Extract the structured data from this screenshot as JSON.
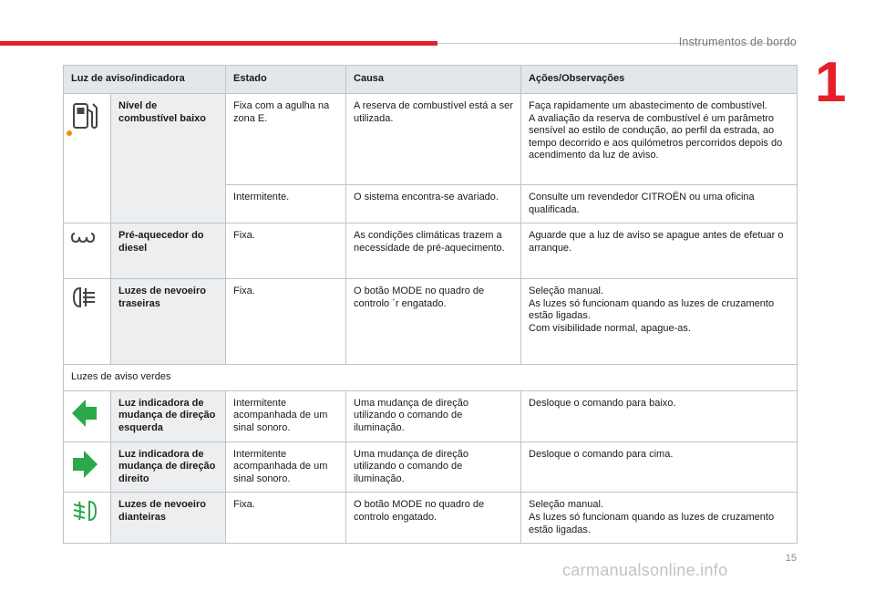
{
  "header": {
    "section_title": "Instrumentos de bordo",
    "chapter": "1"
  },
  "footer": {
    "page_number": "15",
    "watermark": "carmanualsonline.info"
  },
  "table": {
    "columns": [
      "Luz de aviso/indicadora",
      "Estado",
      "Causa",
      "Ações/Observações"
    ],
    "rows": {
      "fuel": {
        "icon": "fuel-pump-icon",
        "name": "Nível de combustível baixo",
        "sub": [
          {
            "estado": "Fixa com a agulha na zona E.",
            "causa": "A reserva de combustível está a ser utilizada.",
            "acoes": [
              "Faça rapidamente um abastecimento de combustível.",
              "A avaliação da reserva de combustível é um parâmetro sensível ao estilo de condução, ao perfil da estrada, ao tempo decorrido e aos quilómetros percorridos depois do acendimento da luz de aviso."
            ]
          },
          {
            "estado": "Intermitente.",
            "causa": "O sistema encontra-se avariado.",
            "acoes": [
              "Consulte um revendedor CITROËN ou uma oficina qualificada."
            ]
          }
        ]
      },
      "preheat": {
        "icon": "glow-plug-icon",
        "name": "Pré-aquecedor do diesel",
        "estado": "Fixa.",
        "causa": "As condições climáticas trazem a necessidade de pré-aquecimento.",
        "acoes": [
          "Aguarde que a luz de aviso se apague antes de efetuar o arranque."
        ]
      },
      "rear_fog": {
        "icon": "rear-fog-lamp-icon",
        "name": "Luzes de nevoeiro traseiras",
        "estado": "Fixa.",
        "causa": "O botão MODE no quadro de controlo ´r engatado.",
        "acoes": [
          "Seleção manual.",
          "As luzes só funcionam quando as luzes de cruzamento estão ligadas.",
          "Com visibilidade normal, apague-as."
        ]
      },
      "green_section": "Luzes de aviso verdes",
      "left_turn": {
        "icon": "left-arrow-icon",
        "name": "Luz indicadora de mudança de direção esquerda",
        "estado": "Intermitente acompanhada de um sinal sonoro.",
        "causa": "Uma mudança de direção utilizando o comando de iluminação.",
        "acoes": [
          "Desloque o comando para baixo."
        ]
      },
      "right_turn": {
        "icon": "right-arrow-icon",
        "name": "Luz indicadora de mudança de direção direito",
        "estado": "Intermitente acompanhada de um sinal sonoro.",
        "causa": "Uma mudança de direção utilizando o comando de iluminação.",
        "acoes": [
          "Desloque o comando para cima."
        ]
      },
      "front_fog": {
        "icon": "front-fog-lamp-icon",
        "name": "Luzes de nevoeiro dianteiras",
        "estado": "Fixa.",
        "causa": "O botão MODE no quadro de controlo engatado.",
        "acoes": [
          "Seleção manual.",
          "As luzes só funcionam quando as luzes de cruzamento estão ligadas."
        ]
      }
    }
  },
  "colors": {
    "accent_red": "#e5202a",
    "warning_orange": "#f29100",
    "indicator_green": "#2aa84a"
  }
}
